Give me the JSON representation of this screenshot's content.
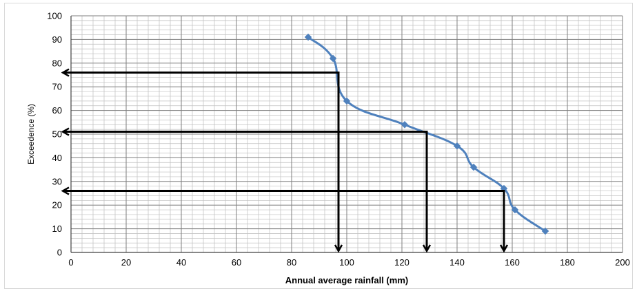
{
  "chart_data": {
    "type": "line",
    "xlabel": "Annual average rainfall (mm)",
    "ylabel": "Exceedence (%)",
    "xlim": [
      0,
      200
    ],
    "ylim": [
      0,
      100
    ],
    "x_ticks": [
      0,
      20,
      40,
      60,
      80,
      100,
      120,
      140,
      160,
      180,
      200
    ],
    "y_ticks": [
      0,
      10,
      20,
      30,
      40,
      50,
      60,
      70,
      80,
      90,
      100
    ],
    "grid": {
      "major": true,
      "minor": true,
      "minor_step_x": 4,
      "minor_step_y": 2
    },
    "series": [
      {
        "color": "#4F81BD",
        "marker": "diamond",
        "x": [
          86,
          95,
          100,
          121,
          140,
          146,
          157,
          161,
          172
        ],
        "y": [
          91,
          82,
          64,
          54,
          45,
          36,
          27,
          18,
          9
        ]
      }
    ],
    "annotations": [
      {
        "type": "arrow",
        "from": [
          97,
          0
        ],
        "to": [
          97,
          76
        ],
        "note": "vertical drop"
      },
      {
        "type": "arrow",
        "from": [
          97,
          76
        ],
        "to": [
          0,
          76
        ],
        "note": "horizontal"
      },
      {
        "type": "arrow",
        "from": [
          129,
          0
        ],
        "to": [
          129,
          51
        ],
        "note": "vertical drop"
      },
      {
        "type": "arrow",
        "from": [
          129,
          51
        ],
        "to": [
          0,
          51
        ],
        "note": "horizontal"
      },
      {
        "type": "arrow",
        "from": [
          157,
          0
        ],
        "to": [
          157,
          26
        ],
        "note": "vertical drop"
      },
      {
        "type": "arrow",
        "from": [
          157,
          26
        ],
        "to": [
          0,
          26
        ],
        "note": "horizontal"
      }
    ],
    "annotation_color": "#000000"
  }
}
